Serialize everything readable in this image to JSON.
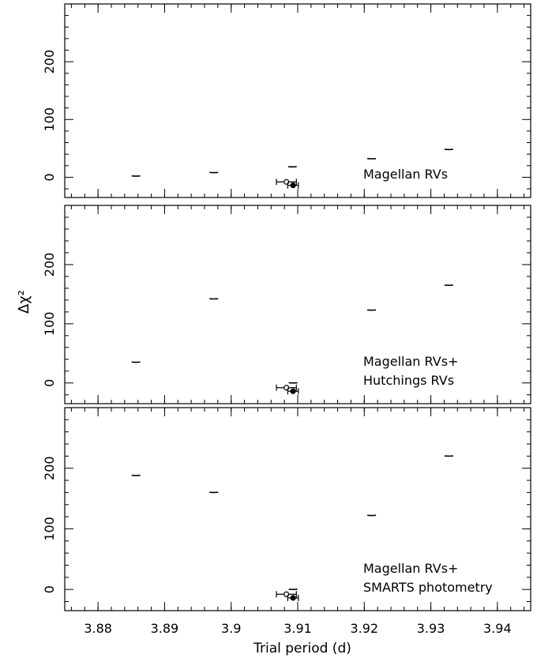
{
  "chart_data": {
    "type": "line",
    "xlabel": "Trial period (d)",
    "ylabel": "Δχ²",
    "xlim": [
      3.875,
      3.945
    ],
    "x_ticks": [
      3.88,
      3.89,
      3.9,
      3.91,
      3.92,
      3.93,
      3.94
    ],
    "x_tick_labels": [
      "3.88",
      "3.89",
      "3.9",
      "3.91",
      "3.92",
      "3.93",
      "3.94"
    ],
    "ylim": [
      -35,
      300
    ],
    "y_ticks": [
      0,
      100,
      200
    ],
    "y_tick_labels": [
      "0",
      "100",
      "200"
    ],
    "marker_open": {
      "x": 3.9083,
      "y": -8,
      "xerr_minus": 0.0015,
      "xerr_plus": 0.0015
    },
    "marker_filled": {
      "x": 3.9093,
      "y": -14,
      "xerr_minus": 0.0008,
      "xerr_plus": 0.0008
    },
    "panels": [
      {
        "annotation": [
          "Magellan RVs"
        ],
        "minima": [
          {
            "x": 3.8857,
            "y": 2
          },
          {
            "x": 3.8974,
            "y": 8
          },
          {
            "x": 3.9092,
            "y": 18
          },
          {
            "x": 3.9211,
            "y": 32
          },
          {
            "x": 3.9327,
            "y": 48
          }
        ]
      },
      {
        "annotation": [
          "Magellan RVs+",
          "Hutchings RVs"
        ],
        "minima": [
          {
            "x": 3.8857,
            "y": 35
          },
          {
            "x": 3.8974,
            "y": 142
          },
          {
            "x": 3.9093,
            "y": 0
          },
          {
            "x": 3.9211,
            "y": 123
          },
          {
            "x": 3.9327,
            "y": 165
          }
        ]
      },
      {
        "annotation": [
          "Magellan RVs+",
          "SMARTS photometry"
        ],
        "minima": [
          {
            "x": 3.8857,
            "y": 188
          },
          {
            "x": 3.8974,
            "y": 160
          },
          {
            "x": 3.9093,
            "y": 0
          },
          {
            "x": 3.9211,
            "y": 122
          },
          {
            "x": 3.9327,
            "y": 220
          }
        ]
      }
    ]
  }
}
